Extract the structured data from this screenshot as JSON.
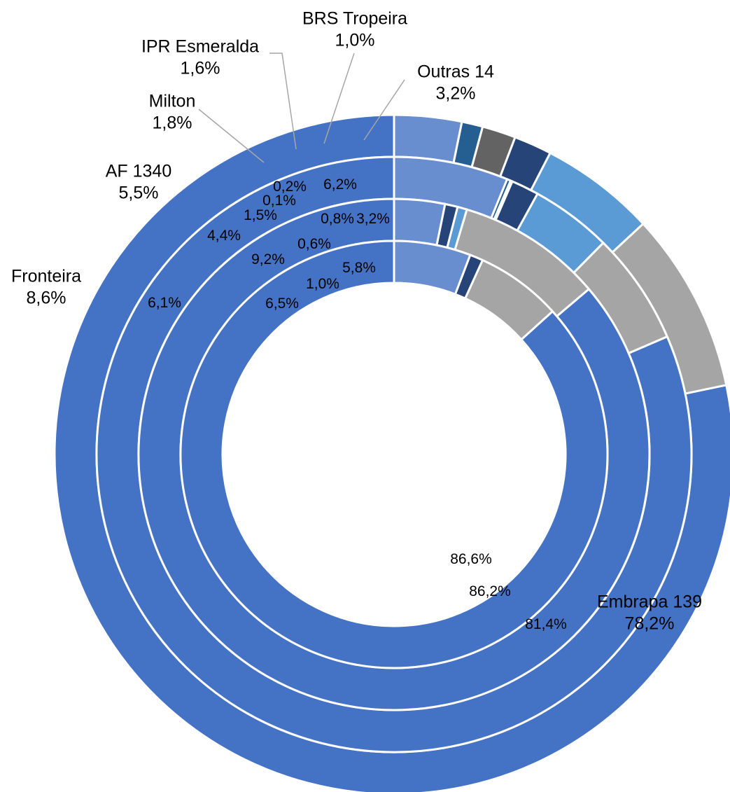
{
  "chart_data": {
    "type": "doughnut",
    "title": "",
    "categories": [
      "Embrapa 139",
      "Fronteira",
      "AF 1340",
      "Milton",
      "IPR Esmeralda",
      "BRS Tropeira",
      "Outras 14"
    ],
    "colors": [
      "#4472c4",
      "#a5a5a5",
      "#5b9bd5",
      "#264478",
      "#636363",
      "#255e91",
      "#698ed0"
    ],
    "series": [
      {
        "values": [
          78.2,
          8.6,
          5.5,
          1.8,
          1.6,
          1.0,
          3.2
        ],
        "labels": [
          "Embrapa 139\n78,2%",
          "Fronteira\n8,6%",
          "AF 1340\n5,5%",
          "Milton\n1,8%",
          "IPR Esmeralda\n1,6%",
          "BRS Tropeira\n1,0%",
          "Outras 14\n3,2%"
        ]
      },
      {
        "values": [
          81.4,
          6.1,
          4.4,
          1.5,
          0.1,
          0.2,
          6.2
        ],
        "labels": [
          "81,4%",
          "6,1%",
          "4,4%",
          "1,5%",
          "0,1%",
          "0,2%",
          "6,2%"
        ]
      },
      {
        "values": [
          86.2,
          9.2,
          0.6,
          0.8,
          0.0,
          0.0,
          3.2
        ],
        "labels": [
          "86,2%",
          "9,2%",
          "0,6%",
          "0,8%",
          "",
          "",
          "3,2%"
        ]
      },
      {
        "values": [
          86.6,
          6.5,
          0.0,
          1.0,
          0.0,
          0.0,
          5.8
        ],
        "labels": [
          "86,6%",
          "6,5%",
          "",
          "1,0%",
          "",
          "",
          "5,8%"
        ]
      }
    ]
  }
}
